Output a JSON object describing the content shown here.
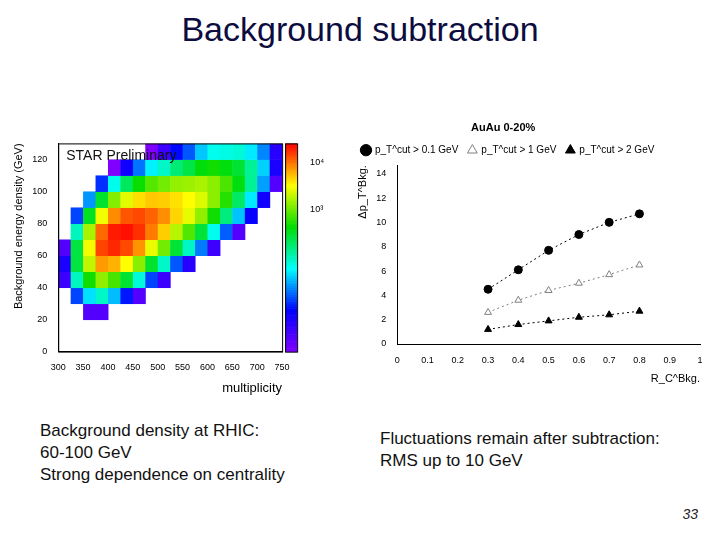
{
  "slide": {
    "title": "Background subtraction",
    "captions": [
      [
        "Background density at RHIC:",
        "60-100 GeV",
        "Strong dependence on centrality"
      ],
      [
        "Fluctuations remain after subtraction:",
        "RMS up to 10 GeV"
      ]
    ],
    "page_number": "33"
  },
  "chart_data": [
    {
      "type": "heatmap",
      "annotation": "STAR Preliminary",
      "x_label": "multiplicity",
      "y_label": "Background energy density (GeV)",
      "xlim": [
        300,
        750
      ],
      "xticks": [
        300,
        350,
        400,
        450,
        500,
        550,
        600,
        650,
        700,
        750
      ],
      "ylim": [
        0,
        130
      ],
      "yticks": [
        0,
        20,
        40,
        60,
        80,
        100,
        120
      ],
      "x_edges": [
        300,
        325,
        350,
        375,
        400,
        425,
        450,
        475,
        500,
        525,
        550,
        575,
        600,
        625,
        650,
        675,
        700,
        725,
        750
      ],
      "y_edges": [
        0,
        10,
        20,
        30,
        40,
        50,
        60,
        70,
        80,
        90,
        100,
        110,
        120,
        130
      ],
      "counts": [
        [
          null,
          null,
          null,
          null,
          3,
          5,
          2,
          null,
          null,
          null,
          null,
          null,
          null
        ],
        [
          null,
          null,
          null,
          13,
          97,
          264,
          264,
          97,
          13,
          null,
          null,
          null,
          null
        ],
        [
          null,
          null,
          2,
          45,
          490,
          2000,
          3000,
          1640,
          330,
          25,
          null,
          null,
          null
        ],
        [
          null,
          null,
          2,
          90,
          1340,
          7300,
          14700,
          10900,
          2970,
          300,
          11,
          null,
          null
        ],
        [
          null,
          null,
          null,
          34,
          750,
          6100,
          18400,
          20300,
          8300,
          1240,
          68,
          1,
          null
        ],
        [
          null,
          null,
          null,
          9,
          290,
          3290,
          14000,
          22000,
          12700,
          2630,
          210,
          6,
          null
        ],
        [
          null,
          null,
          null,
          2,
          77,
          1280,
          7700,
          17200,
          14000,
          4250,
          470,
          19,
          null
        ],
        [
          null,
          null,
          null,
          null,
          13,
          310,
          2840,
          9400,
          11500,
          5100,
          850,
          52,
          1
        ],
        [
          null,
          null,
          null,
          null,
          3,
          89,
          1080,
          4850,
          8000,
          4850,
          1080,
          89,
          3
        ],
        [
          null,
          null,
          null,
          null,
          null,
          15,
          280,
          1880,
          4620,
          4180,
          1390,
          170,
          8
        ],
        [
          null,
          null,
          null,
          null,
          null,
          4,
          91,
          830,
          2740,
          3350,
          1500,
          250,
          15
        ],
        [
          null,
          null,
          null,
          null,
          null,
          null,
          20,
          275,
          1370,
          2490,
          1670,
          410,
          37
        ],
        [
          null,
          null,
          null,
          null,
          null,
          null,
          3,
          66,
          490,
          1320,
          1320,
          490,
          66
        ],
        [
          null,
          null,
          null,
          null,
          null,
          null,
          null,
          16,
          160,
          580,
          785,
          390,
          71
        ],
        [
          null,
          null,
          null,
          null,
          null,
          null,
          null,
          2,
          36,
          195,
          392,
          290,
          79
        ],
        [
          null,
          null,
          null,
          null,
          null,
          null,
          null,
          null,
          7,
          49,
          132,
          132,
          49
        ],
        [
          null,
          null,
          null,
          null,
          null,
          null,
          null,
          null,
          null,
          6,
          27,
          40,
          22
        ],
        [
          null,
          null,
          null,
          null,
          null,
          null,
          null,
          null,
          null,
          null,
          2,
          5,
          4
        ]
      ],
      "color_range": [
        1,
        25000
      ],
      "color_ticks": [
        {
          "value": 1000,
          "label": "10³"
        },
        {
          "value": 10000,
          "label": "10⁴"
        }
      ]
    },
    {
      "type": "line",
      "x_label": "R_C^Bkg.",
      "y_label": "Δp_T^Bkg.",
      "legend_title": "AuAu 0-20%",
      "legend": "top left",
      "x": [
        0.3,
        0.4,
        0.5,
        0.6,
        0.7,
        0.8
      ],
      "series": [
        {
          "name": "p_T^cut > 0.1 GeV",
          "color": "#000000",
          "marker": "circle",
          "line_style": "dotted",
          "values": [
            4.5,
            6.1,
            7.7,
            9.0,
            10.0,
            10.7
          ]
        },
        {
          "name": "p_T^cut > 1 GeV",
          "color": "#808080",
          "marker": "open triangle",
          "line_style": "dotted",
          "values": [
            2.6,
            3.6,
            4.4,
            5.0,
            5.7,
            6.5
          ]
        },
        {
          "name": "p_T^cut > 2 GeV",
          "color": "#000000",
          "marker": "triangle",
          "line_style": "dotted",
          "values": [
            1.2,
            1.6,
            1.9,
            2.2,
            2.4,
            2.7
          ]
        }
      ],
      "xlim": [
        0,
        1
      ],
      "xticks": [
        0,
        0.1,
        0.2,
        0.3,
        0.4,
        0.5,
        0.6,
        0.7,
        0.8,
        0.9,
        1
      ],
      "ylim": [
        0,
        14.7
      ],
      "yticks": [
        0,
        2,
        4,
        6,
        8,
        10,
        12,
        14
      ]
    }
  ]
}
